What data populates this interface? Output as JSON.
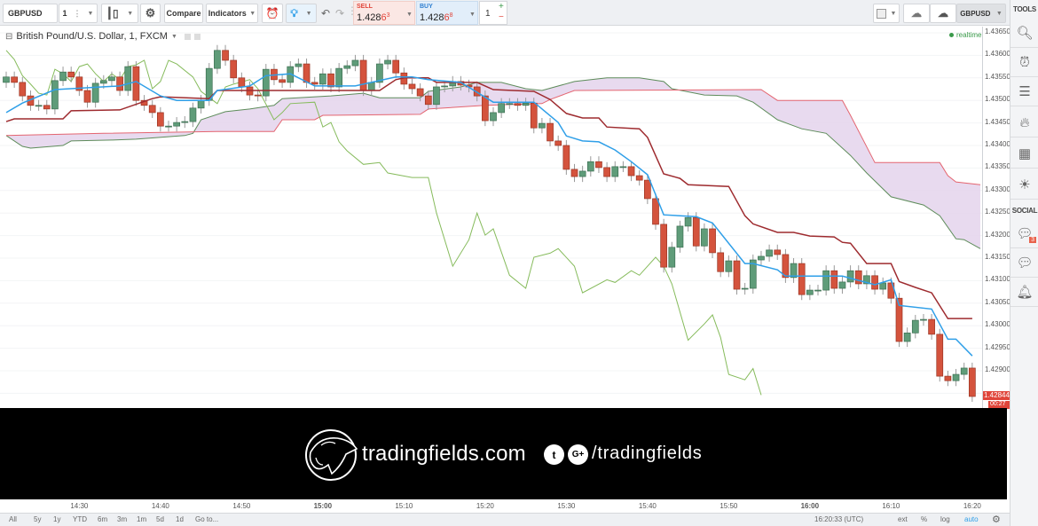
{
  "toolbar": {
    "symbol": "GBPUSD",
    "interval": "1",
    "compare_label": "Compare",
    "indicators_label": "Indicators",
    "sell": {
      "label": "SELL",
      "price_main": "1.428",
      "price_big": "6",
      "price_sup": "3"
    },
    "buy": {
      "label": "BUY",
      "price_main": "1.428",
      "price_big": "6",
      "price_sup": "8"
    },
    "quantity": "1",
    "plus": "+",
    "minus": "−",
    "symbol_right": "GBPUSD"
  },
  "right_panel": {
    "tools_label": "TOOLS",
    "social_label": "SOCIAL",
    "chat_badge": "3",
    "icons": [
      "zoom-chart-icon",
      "alarm-clock-icon",
      "news-icon",
      "hotlist-flame-icon",
      "calendar-icon",
      "brightness-icon"
    ],
    "social_icons": [
      "chat-icon",
      "private-chat-icon",
      "bell-icon"
    ]
  },
  "legend": {
    "title": "British Pound/U.S. Dollar, 1, FXCM",
    "status": "realtime"
  },
  "price_axis": {
    "labels": [
      "1.43650",
      "1.43600",
      "1.43550",
      "1.43500",
      "1.43450",
      "1.43400",
      "1.43350",
      "1.43300",
      "1.43250",
      "1.43200",
      "1.43150",
      "1.43100",
      "1.43050",
      "1.43000",
      "1.42950",
      "1.42900"
    ],
    "last_price": "1.42844",
    "countdown": "00:27"
  },
  "time_axis": {
    "labels": [
      "14:30",
      "14:40",
      "14:50",
      "15:00",
      "15:10",
      "15:20",
      "15:30",
      "15:40",
      "15:50",
      "16:00",
      "16:10",
      "16:20"
    ],
    "bold": [
      "15:00",
      "16:00"
    ]
  },
  "bottom_bar": {
    "ranges": [
      "All",
      "5y",
      "1y",
      "YTD",
      "6m",
      "3m",
      "1m",
      "5d",
      "1d",
      "Go to..."
    ],
    "clock": "16:20:33 (UTC)",
    "ext": "ext",
    "percent": "%",
    "log": "log",
    "auto": "auto"
  },
  "banner": {
    "site": "tradingfields.com",
    "handle": "/tradingfields",
    "logo_text": "tradingfields"
  },
  "colors": {
    "up": "#5f9c79",
    "down": "#d4533d",
    "conversion": "#2f9fe8",
    "base": "#9e2b2f",
    "lagging": "#86bb5c",
    "span_a": "#5e8c5b",
    "span_b": "#e46570",
    "cloud": "#e4d3ec",
    "accent": "#2f9fe8"
  },
  "chart_data": {
    "type": "candlestick",
    "symbol": "GBPUSD",
    "timeframe": "1 minute",
    "ylim": [
      1.428,
      1.4366
    ],
    "candles": {
      "start": "14:21",
      "interval_min": 1,
      "first_open": 1.4354,
      "close": [
        1.43552,
        1.4354,
        1.4351,
        1.43489,
        1.43489,
        1.43481,
        1.43544,
        1.43563,
        1.43552,
        1.43522,
        1.43496,
        1.43538,
        1.43544,
        1.43552,
        1.43522,
        1.43575,
        1.435,
        1.43489,
        1.43473,
        1.43443,
        1.43443,
        1.43451,
        1.43453,
        1.43483,
        1.435,
        1.43571,
        1.43611,
        1.43589,
        1.4355,
        1.4353,
        1.43512,
        1.4351,
        1.43569,
        1.43546,
        1.4354,
        1.43575,
        1.43581,
        1.4354,
        1.43536,
        1.43559,
        1.4353,
        1.43571,
        1.43577,
        1.43589,
        1.43522,
        1.4354,
        1.43581,
        1.43589,
        1.43561,
        1.43536,
        1.43526,
        1.4351,
        1.43491,
        1.4353,
        1.43532,
        1.43542,
        1.43534,
        1.4353,
        1.4351,
        1.43455,
        1.43473,
        1.43493,
        1.43493,
        1.43489,
        1.43494,
        1.43439,
        1.43449,
        1.4341,
        1.434,
        1.43347,
        1.43331,
        1.43343,
        1.43364,
        1.43351,
        1.43331,
        1.43353,
        1.43353,
        1.43333,
        1.43323,
        1.43282,
        1.43225,
        1.4313,
        1.43174,
        1.43221,
        1.4324,
        1.43177,
        1.43215,
        1.43162,
        1.4312,
        1.43144,
        1.43081,
        1.43083,
        1.43146,
        1.43154,
        1.43168,
        1.43158,
        1.43107,
        1.43138,
        1.43069,
        1.43079,
        1.43079,
        1.43122,
        1.43083,
        1.43097,
        1.43122,
        1.43093,
        1.43111,
        1.43081,
        1.43095,
        1.43061,
        1.42965,
        1.42984,
        1.43012,
        1.43014,
        1.42981,
        1.42888,
        1.42878,
        1.42892,
        1.42906,
        1.42843
      ]
    },
    "ichimoku": {
      "conversion_line": [
        [
          "14:21",
          1.43473
        ],
        [
          "14:23",
          1.43494
        ],
        [
          "14:27",
          1.43524
        ],
        [
          "14:35",
          1.43532
        ],
        [
          "14:37",
          1.43542
        ],
        [
          "14:40",
          1.4351
        ],
        [
          "14:42",
          1.435
        ],
        [
          "14:46",
          1.435
        ],
        [
          "14:47",
          1.43522
        ],
        [
          "14:51",
          1.43532
        ],
        [
          "14:53",
          1.43555
        ],
        [
          "14:56",
          1.43559
        ],
        [
          "14:59",
          1.43532
        ],
        [
          "15:04",
          1.43532
        ],
        [
          "15:09",
          1.43552
        ],
        [
          "15:11",
          1.43552
        ],
        [
          "15:13",
          1.43546
        ],
        [
          "15:17",
          1.4354
        ],
        [
          "15:21",
          1.43496
        ],
        [
          "15:26",
          1.43496
        ],
        [
          "15:29",
          1.43451
        ],
        [
          "15:30",
          1.43421
        ],
        [
          "15:32",
          1.4341
        ],
        [
          "15:34",
          1.43408
        ],
        [
          "15:36",
          1.4339
        ],
        [
          "15:38",
          1.43364
        ],
        [
          "15:40",
          1.43335
        ],
        [
          "15:42",
          1.43246
        ],
        [
          "15:46",
          1.43242
        ],
        [
          "15:48",
          1.43228
        ],
        [
          "15:52",
          1.43138
        ],
        [
          "15:53",
          1.43138
        ],
        [
          "15:56",
          1.43124
        ],
        [
          "15:57",
          1.4311
        ],
        [
          "16:04",
          1.4311
        ],
        [
          "16:08",
          1.43091
        ],
        [
          "16:10",
          1.43102
        ],
        [
          "16:11",
          1.43045
        ],
        [
          "16:15",
          1.43037
        ],
        [
          "16:17",
          1.4297
        ],
        [
          "16:18",
          1.4297
        ],
        [
          "16:20",
          1.42933
        ]
      ],
      "base_line": [
        [
          "14:21",
          1.43453
        ],
        [
          "14:22",
          1.43459
        ],
        [
          "14:28",
          1.43459
        ],
        [
          "14:29",
          1.43477
        ],
        [
          "14:35",
          1.43479
        ],
        [
          "14:39",
          1.43504
        ],
        [
          "14:40",
          1.43508
        ],
        [
          "14:46",
          1.43504
        ],
        [
          "14:47",
          1.43522
        ],
        [
          "15:07",
          1.43522
        ],
        [
          "15:09",
          1.43546
        ],
        [
          "15:10",
          1.4355
        ],
        [
          "15:13",
          1.4355
        ],
        [
          "15:14",
          1.4354
        ],
        [
          "15:19",
          1.4354
        ],
        [
          "15:21",
          1.43524
        ],
        [
          "15:26",
          1.4352
        ],
        [
          "15:28",
          1.43502
        ],
        [
          "15:30",
          1.43471
        ],
        [
          "15:32",
          1.43461
        ],
        [
          "15:34",
          1.43461
        ],
        [
          "15:35",
          1.43441
        ],
        [
          "15:39",
          1.43437
        ],
        [
          "15:40",
          1.43418
        ],
        [
          "15:42",
          1.43337
        ],
        [
          "15:44",
          1.43327
        ],
        [
          "15:45",
          1.43313
        ],
        [
          "15:50",
          1.43309
        ],
        [
          "15:52",
          1.43244
        ],
        [
          "15:53",
          1.43226
        ],
        [
          "15:56",
          1.43207
        ],
        [
          "15:58",
          1.43207
        ],
        [
          "16:00",
          1.43199
        ],
        [
          "16:03",
          1.43197
        ],
        [
          "16:04",
          1.43185
        ],
        [
          "16:05",
          1.43183
        ],
        [
          "16:07",
          1.43138
        ],
        [
          "16:10",
          1.43138
        ],
        [
          "16:11",
          1.43098
        ],
        [
          "16:13",
          1.43085
        ],
        [
          "16:15",
          1.43073
        ],
        [
          "16:17",
          1.43016
        ],
        [
          "16:20",
          1.43016
        ]
      ],
      "lagging_span": [
        [
          "14:21",
          1.43611
        ],
        [
          "14:22",
          1.43591
        ],
        [
          "14:23",
          1.43555
        ],
        [
          "14:24",
          1.43536
        ],
        [
          "14:25",
          1.43516
        ],
        [
          "14:26",
          1.43512
        ],
        [
          "14:27",
          1.43569
        ],
        [
          "14:28",
          1.43559
        ],
        [
          "14:29",
          1.43542
        ],
        [
          "14:30",
          1.43575
        ],
        [
          "14:31",
          1.43581
        ],
        [
          "14:32",
          1.43559
        ],
        [
          "14:33",
          1.43542
        ],
        [
          "14:34",
          1.43559
        ],
        [
          "14:35",
          1.43546
        ],
        [
          "14:36",
          1.43575
        ],
        [
          "14:37",
          1.43579
        ],
        [
          "14:38",
          1.43589
        ],
        [
          "14:39",
          1.43526
        ],
        [
          "14:40",
          1.43542
        ],
        [
          "14:41",
          1.43589
        ],
        [
          "14:42",
          1.43581
        ],
        [
          "14:44",
          1.43552
        ],
        [
          "14:45",
          1.4352
        ],
        [
          "14:47",
          1.43493
        ],
        [
          "14:48",
          1.4353
        ],
        [
          "14:49",
          1.43536
        ],
        [
          "14:51",
          1.43546
        ],
        [
          "14:52",
          1.43526
        ],
        [
          "14:54",
          1.43457
        ],
        [
          "14:55",
          1.43473
        ],
        [
          "14:56",
          1.43493
        ],
        [
          "14:59",
          1.43496
        ],
        [
          "15:00",
          1.43441
        ],
        [
          "15:01",
          1.43451
        ],
        [
          "15:02",
          1.43408
        ],
        [
          "15:03",
          1.43388
        ],
        [
          "15:05",
          1.43358
        ],
        [
          "15:07",
          1.43362
        ],
        [
          "15:08",
          1.43339
        ],
        [
          "15:11",
          1.43329
        ],
        [
          "15:13",
          1.43329
        ],
        [
          "15:14",
          1.4325
        ],
        [
          "15:16",
          1.43132
        ],
        [
          "15:18",
          1.43191
        ],
        [
          "15:19",
          1.4325
        ],
        [
          "15:20",
          1.43201
        ],
        [
          "15:21",
          1.43215
        ],
        [
          "15:23",
          1.43112
        ],
        [
          "15:25",
          1.43083
        ],
        [
          "15:26",
          1.43152
        ],
        [
          "15:28",
          1.43161
        ],
        [
          "15:29",
          1.43171
        ],
        [
          "15:31",
          1.43132
        ],
        [
          "15:32",
          1.43073
        ],
        [
          "15:35",
          1.43102
        ],
        [
          "15:36",
          1.43096
        ],
        [
          "15:38",
          1.43122
        ],
        [
          "15:39",
          1.43112
        ],
        [
          "15:41",
          1.43152
        ],
        [
          "15:42",
          1.43132
        ],
        [
          "15:43",
          1.43093
        ],
        [
          "15:45",
          1.42968
        ],
        [
          "15:47",
          1.43004
        ],
        [
          "15:48",
          1.43024
        ],
        [
          "15:49",
          1.42974
        ],
        [
          "15:50",
          1.42892
        ],
        [
          "15:52",
          1.4288
        ],
        [
          "15:53",
          1.42905
        ],
        [
          "15:54",
          1.42846
        ]
      ],
      "leading_span_a": [
        [
          "14:21",
          1.43422
        ],
        [
          "14:23",
          1.43398
        ],
        [
          "14:24",
          1.43394
        ],
        [
          "14:28",
          1.434
        ],
        [
          "14:29",
          1.4341
        ],
        [
          "14:34",
          1.43412
        ],
        [
          "14:37",
          1.43414
        ],
        [
          "14:43",
          1.43422
        ],
        [
          "14:44",
          1.43427
        ],
        [
          "14:45",
          1.43457
        ],
        [
          "14:48",
          1.43475
        ],
        [
          "14:51",
          1.43481
        ],
        [
          "14:54",
          1.43489
        ],
        [
          "14:55",
          1.43504
        ],
        [
          "15:01",
          1.4351
        ],
        [
          "15:05",
          1.43516
        ],
        [
          "15:07",
          1.43506
        ],
        [
          "15:12",
          1.43506
        ],
        [
          "15:13",
          1.4352
        ],
        [
          "15:17",
          1.4353
        ],
        [
          "15:19",
          1.4354
        ],
        [
          "15:22",
          1.4354
        ],
        [
          "15:25",
          1.43526
        ],
        [
          "15:27",
          1.43522
        ],
        [
          "15:31",
          1.43542
        ],
        [
          "15:35",
          1.4355
        ],
        [
          "15:39",
          1.4355
        ],
        [
          "15:42",
          1.43542
        ],
        [
          "15:43",
          1.43526
        ],
        [
          "15:47",
          1.43512
        ],
        [
          "15:51",
          1.4351
        ],
        [
          "15:53",
          1.43496
        ],
        [
          "15:56",
          1.43457
        ],
        [
          "15:59",
          1.43437
        ],
        [
          "16:02",
          1.43427
        ],
        [
          "16:05",
          1.43378
        ],
        [
          "16:07",
          1.43339
        ],
        [
          "16:10",
          1.43286
        ],
        [
          "16:14",
          1.43268
        ],
        [
          "16:16",
          1.43244
        ],
        [
          "16:18",
          1.43193
        ],
        [
          "16:19",
          1.43191
        ],
        [
          "16:21",
          1.43171
        ]
      ],
      "leading_span_b": [
        [
          "14:21",
          1.43422
        ],
        [
          "14:33",
          1.43427
        ],
        [
          "14:47",
          1.43431
        ],
        [
          "14:54",
          1.43431
        ],
        [
          "14:55",
          1.43457
        ],
        [
          "14:59",
          1.43457
        ],
        [
          "15:00",
          1.43467
        ],
        [
          "15:12",
          1.43469
        ],
        [
          "15:13",
          1.43481
        ],
        [
          "15:20",
          1.43489
        ],
        [
          "15:27",
          1.43493
        ],
        [
          "15:28",
          1.43502
        ],
        [
          "15:31",
          1.43522
        ],
        [
          "15:54",
          1.43524
        ],
        [
          "15:56",
          1.435
        ],
        [
          "16:04",
          1.435
        ],
        [
          "16:05",
          1.43467
        ],
        [
          "16:08",
          1.43362
        ],
        [
          "16:16",
          1.43362
        ],
        [
          "16:17",
          1.43333
        ],
        [
          "16:18",
          1.43319
        ],
        [
          "16:21",
          1.43313
        ]
      ]
    }
  }
}
